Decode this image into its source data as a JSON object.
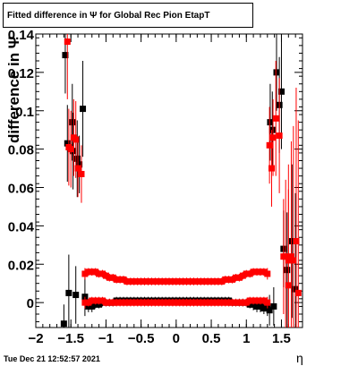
{
  "chart_data": {
    "type": "scatter",
    "title": "Fitted difference in  Ψ  for Global Rec Pion EtapT",
    "xlabel": "η",
    "ylabel": "difference in  Ψ",
    "xlim": [
      -2.0,
      1.8
    ],
    "ylim": [
      -0.013,
      0.14
    ],
    "xticks": [
      -2,
      -1.5,
      -1,
      -0.5,
      0,
      0.5,
      1,
      1.5
    ],
    "xtick_labels": [
      "−2",
      "−1.5",
      "−1",
      "−0.5",
      "0",
      "0.5",
      "1",
      "1.5"
    ],
    "yticks": [
      0,
      0.02,
      0.04,
      0.06,
      0.08,
      0.1,
      0.12,
      0.14
    ],
    "ytick_labels": [
      "0",
      "0.02",
      "0.04",
      "0.06",
      "0.08",
      "0.1",
      "0.12",
      "0.14"
    ],
    "grid": false,
    "colors": {
      "black_series": "#000000",
      "red_series": "#ff0000"
    },
    "series": [
      {
        "color": "black",
        "points": [
          [
            -1.58,
            0.129,
            0.02
          ],
          [
            -1.53,
            0.005,
            0.02
          ],
          [
            -1.48,
            0.094,
            0.02
          ],
          [
            -1.43,
            0.004,
            0.015
          ],
          [
            -1.41,
            0.075,
            0.02
          ],
          [
            -1.38,
            0.072,
            0.015
          ],
          [
            -1.33,
            0.101,
            0.025
          ],
          [
            -1.3,
            0.003,
            0.01
          ],
          [
            -1.6,
            -0.011,
            0.01
          ],
          [
            -1.55,
            0.083,
            0.02
          ],
          [
            -1.47,
            0.079,
            0.02
          ],
          [
            -1.25,
            -0.002,
            0.003
          ],
          [
            -1.2,
            -0.002,
            0.003
          ],
          [
            -1.15,
            -0.001,
            0.002
          ],
          [
            -1.1,
            -0.001,
            0.002
          ],
          [
            -1.05,
            0.0,
            0.002
          ],
          [
            -1.0,
            0.0,
            0.002
          ],
          [
            -0.95,
            0.0,
            0.002
          ],
          [
            -0.9,
            0.0,
            0.002
          ],
          [
            -0.85,
            0.001,
            0.002
          ],
          [
            -0.8,
            0.001,
            0.002
          ],
          [
            -0.75,
            0.001,
            0.002
          ],
          [
            -0.7,
            0.001,
            0.002
          ],
          [
            -0.65,
            0.001,
            0.002
          ],
          [
            -0.6,
            0.001,
            0.002
          ],
          [
            -0.55,
            0.001,
            0.002
          ],
          [
            -0.5,
            0.001,
            0.002
          ],
          [
            -0.45,
            0.001,
            0.002
          ],
          [
            -0.4,
            0.001,
            0.002
          ],
          [
            -0.35,
            0.001,
            0.002
          ],
          [
            -0.3,
            0.001,
            0.002
          ],
          [
            -0.25,
            0.001,
            0.002
          ],
          [
            -0.2,
            0.001,
            0.002
          ],
          [
            -0.15,
            0.001,
            0.002
          ],
          [
            -0.1,
            0.001,
            0.002
          ],
          [
            -0.05,
            0.001,
            0.002
          ],
          [
            0.0,
            0.001,
            0.002
          ],
          [
            0.05,
            0.001,
            0.002
          ],
          [
            0.1,
            0.001,
            0.002
          ],
          [
            0.15,
            0.001,
            0.002
          ],
          [
            0.2,
            0.001,
            0.002
          ],
          [
            0.25,
            0.001,
            0.002
          ],
          [
            0.3,
            0.001,
            0.002
          ],
          [
            0.35,
            0.001,
            0.002
          ],
          [
            0.4,
            0.001,
            0.002
          ],
          [
            0.45,
            0.001,
            0.002
          ],
          [
            0.5,
            0.001,
            0.002
          ],
          [
            0.55,
            0.001,
            0.002
          ],
          [
            0.6,
            0.001,
            0.002
          ],
          [
            0.65,
            0.001,
            0.002
          ],
          [
            0.7,
            0.001,
            0.002
          ],
          [
            0.75,
            0.001,
            0.002
          ],
          [
            0.8,
            0.0,
            0.002
          ],
          [
            0.85,
            0.0,
            0.002
          ],
          [
            0.9,
            0.0,
            0.002
          ],
          [
            0.95,
            0.0,
            0.002
          ],
          [
            1.0,
            0.0,
            0.002
          ],
          [
            1.05,
            -0.001,
            0.002
          ],
          [
            1.1,
            -0.001,
            0.003
          ],
          [
            1.15,
            -0.002,
            0.003
          ],
          [
            1.2,
            -0.002,
            0.003
          ],
          [
            1.25,
            -0.003,
            0.003
          ],
          [
            1.3,
            -0.003,
            0.004
          ],
          [
            1.34,
            0.094,
            0.02
          ],
          [
            1.37,
            0.09,
            0.02
          ],
          [
            1.43,
            0.12,
            0.02
          ],
          [
            1.47,
            0.103,
            0.025
          ],
          [
            1.5,
            0.11,
            0.03
          ],
          [
            1.53,
            0.028,
            0.02
          ],
          [
            1.58,
            0.017,
            0.03
          ],
          [
            1.65,
            0.032,
            0.04
          ],
          [
            1.7,
            0.007,
            0.05
          ],
          [
            1.39,
            -0.002,
            0.01
          ],
          [
            1.33,
            -0.004,
            0.008
          ]
        ]
      },
      {
        "color": "red",
        "points": [
          [
            -1.55,
            0.136,
            0.03
          ],
          [
            -1.53,
            0.081,
            0.02
          ],
          [
            -1.5,
            0.08,
            0.02
          ],
          [
            -1.46,
            0.086,
            0.02
          ],
          [
            -1.43,
            0.085,
            0.02
          ],
          [
            -1.4,
            0.07,
            0.015
          ],
          [
            -1.35,
            0.067,
            0.015
          ],
          [
            -1.3,
            0.015,
            0.003
          ],
          [
            -1.25,
            0.016,
            0.002
          ],
          [
            -1.2,
            0.016,
            0.002
          ],
          [
            -1.15,
            0.016,
            0.002
          ],
          [
            -1.1,
            0.015,
            0.002
          ],
          [
            -1.05,
            0.015,
            0.002
          ],
          [
            -1.0,
            0.014,
            0.002
          ],
          [
            -0.95,
            0.013,
            0.002
          ],
          [
            -0.9,
            0.013,
            0.002
          ],
          [
            -0.85,
            0.012,
            0.002
          ],
          [
            -0.8,
            0.012,
            0.002
          ],
          [
            -0.75,
            0.012,
            0.002
          ],
          [
            -0.7,
            0.011,
            0.002
          ],
          [
            -0.65,
            0.011,
            0.002
          ],
          [
            -0.6,
            0.011,
            0.002
          ],
          [
            -0.55,
            0.011,
            0.002
          ],
          [
            -0.5,
            0.011,
            0.002
          ],
          [
            -0.45,
            0.011,
            0.002
          ],
          [
            -0.4,
            0.011,
            0.002
          ],
          [
            -0.35,
            0.011,
            0.002
          ],
          [
            -0.3,
            0.011,
            0.002
          ],
          [
            -0.25,
            0.011,
            0.002
          ],
          [
            -0.2,
            0.011,
            0.002
          ],
          [
            -0.15,
            0.011,
            0.002
          ],
          [
            -0.1,
            0.011,
            0.002
          ],
          [
            -0.05,
            0.011,
            0.002
          ],
          [
            0.0,
            0.011,
            0.002
          ],
          [
            0.05,
            0.011,
            0.002
          ],
          [
            0.1,
            0.011,
            0.002
          ],
          [
            0.15,
            0.011,
            0.002
          ],
          [
            0.2,
            0.011,
            0.002
          ],
          [
            0.25,
            0.011,
            0.002
          ],
          [
            0.3,
            0.011,
            0.002
          ],
          [
            0.35,
            0.011,
            0.002
          ],
          [
            0.4,
            0.011,
            0.002
          ],
          [
            0.45,
            0.011,
            0.002
          ],
          [
            0.5,
            0.011,
            0.002
          ],
          [
            0.55,
            0.011,
            0.002
          ],
          [
            0.6,
            0.011,
            0.002
          ],
          [
            0.65,
            0.011,
            0.002
          ],
          [
            0.7,
            0.012,
            0.002
          ],
          [
            0.75,
            0.012,
            0.002
          ],
          [
            0.8,
            0.012,
            0.002
          ],
          [
            0.85,
            0.013,
            0.002
          ],
          [
            0.9,
            0.013,
            0.002
          ],
          [
            0.95,
            0.014,
            0.002
          ],
          [
            1.0,
            0.015,
            0.002
          ],
          [
            1.05,
            0.015,
            0.002
          ],
          [
            1.1,
            0.016,
            0.002
          ],
          [
            1.15,
            0.016,
            0.002
          ],
          [
            1.2,
            0.016,
            0.002
          ],
          [
            1.25,
            0.016,
            0.002
          ],
          [
            1.3,
            0.015,
            0.003
          ],
          [
            -1.25,
            0.0,
            0.002
          ],
          [
            -1.2,
            0.001,
            0.002
          ],
          [
            -1.15,
            0.001,
            0.002
          ],
          [
            -1.1,
            0.001,
            0.002
          ],
          [
            -1.05,
            0.001,
            0.002
          ],
          [
            -1.0,
            0.0,
            0.002
          ],
          [
            -0.95,
            0.0,
            0.002
          ],
          [
            -0.9,
            0.0,
            0.002
          ],
          [
            -0.85,
            0.0,
            0.002
          ],
          [
            -0.8,
            0.0,
            0.002
          ],
          [
            -0.75,
            0.0,
            0.002
          ],
          [
            -0.7,
            0.0,
            0.002
          ],
          [
            -0.65,
            0.0,
            0.002
          ],
          [
            -0.6,
            0.0,
            0.002
          ],
          [
            -0.55,
            0.0,
            0.002
          ],
          [
            -0.5,
            0.0,
            0.002
          ],
          [
            -0.45,
            0.0,
            0.002
          ],
          [
            -0.4,
            0.0,
            0.002
          ],
          [
            -0.35,
            0.0,
            0.002
          ],
          [
            -0.3,
            0.0,
            0.002
          ],
          [
            -0.25,
            0.0,
            0.002
          ],
          [
            -0.2,
            0.0,
            0.002
          ],
          [
            -0.15,
            0.0,
            0.002
          ],
          [
            -0.1,
            0.0,
            0.002
          ],
          [
            -0.05,
            0.0,
            0.002
          ],
          [
            0.0,
            0.0,
            0.002
          ],
          [
            0.05,
            0.0,
            0.002
          ],
          [
            0.1,
            0.0,
            0.002
          ],
          [
            0.15,
            0.0,
            0.002
          ],
          [
            0.2,
            0.0,
            0.002
          ],
          [
            0.25,
            0.0,
            0.002
          ],
          [
            0.3,
            0.0,
            0.002
          ],
          [
            0.35,
            0.0,
            0.002
          ],
          [
            0.4,
            0.0,
            0.002
          ],
          [
            0.45,
            0.0,
            0.002
          ],
          [
            0.5,
            0.0,
            0.002
          ],
          [
            0.55,
            0.0,
            0.002
          ],
          [
            0.6,
            0.0,
            0.002
          ],
          [
            0.65,
            0.0,
            0.002
          ],
          [
            0.7,
            0.0,
            0.002
          ],
          [
            0.75,
            0.0,
            0.002
          ],
          [
            0.8,
            0.0,
            0.002
          ],
          [
            0.85,
            0.0,
            0.002
          ],
          [
            0.9,
            0.0,
            0.002
          ],
          [
            0.95,
            0.0,
            0.002
          ],
          [
            1.0,
            0.0,
            0.002
          ],
          [
            1.05,
            0.001,
            0.002
          ],
          [
            1.1,
            0.001,
            0.002
          ],
          [
            1.15,
            0.001,
            0.002
          ],
          [
            1.2,
            0.001,
            0.002
          ],
          [
            1.25,
            0.001,
            0.002
          ],
          [
            1.3,
            0.0,
            0.003
          ],
          [
            -1.3,
            0.0,
            0.003
          ],
          [
            1.33,
            0.082,
            0.02
          ],
          [
            1.36,
            0.07,
            0.02
          ],
          [
            1.38,
            0.086,
            0.02
          ],
          [
            1.42,
            0.096,
            0.03
          ],
          [
            1.47,
            0.087,
            0.03
          ],
          [
            1.53,
            0.024,
            0.03
          ],
          [
            1.56,
            0.024,
            0.04
          ],
          [
            1.6,
            0.022,
            0.05
          ],
          [
            1.64,
            0.024,
            0.06
          ],
          [
            1.67,
            0.022,
            0.07
          ],
          [
            1.71,
            0.032,
            0.08
          ],
          [
            1.74,
            0.005,
            0.09
          ],
          [
            1.6,
            0.009,
            0.05
          ]
        ]
      }
    ]
  },
  "footer": {
    "timestamp": "Tue Dec 21 12:52:57 2021"
  }
}
